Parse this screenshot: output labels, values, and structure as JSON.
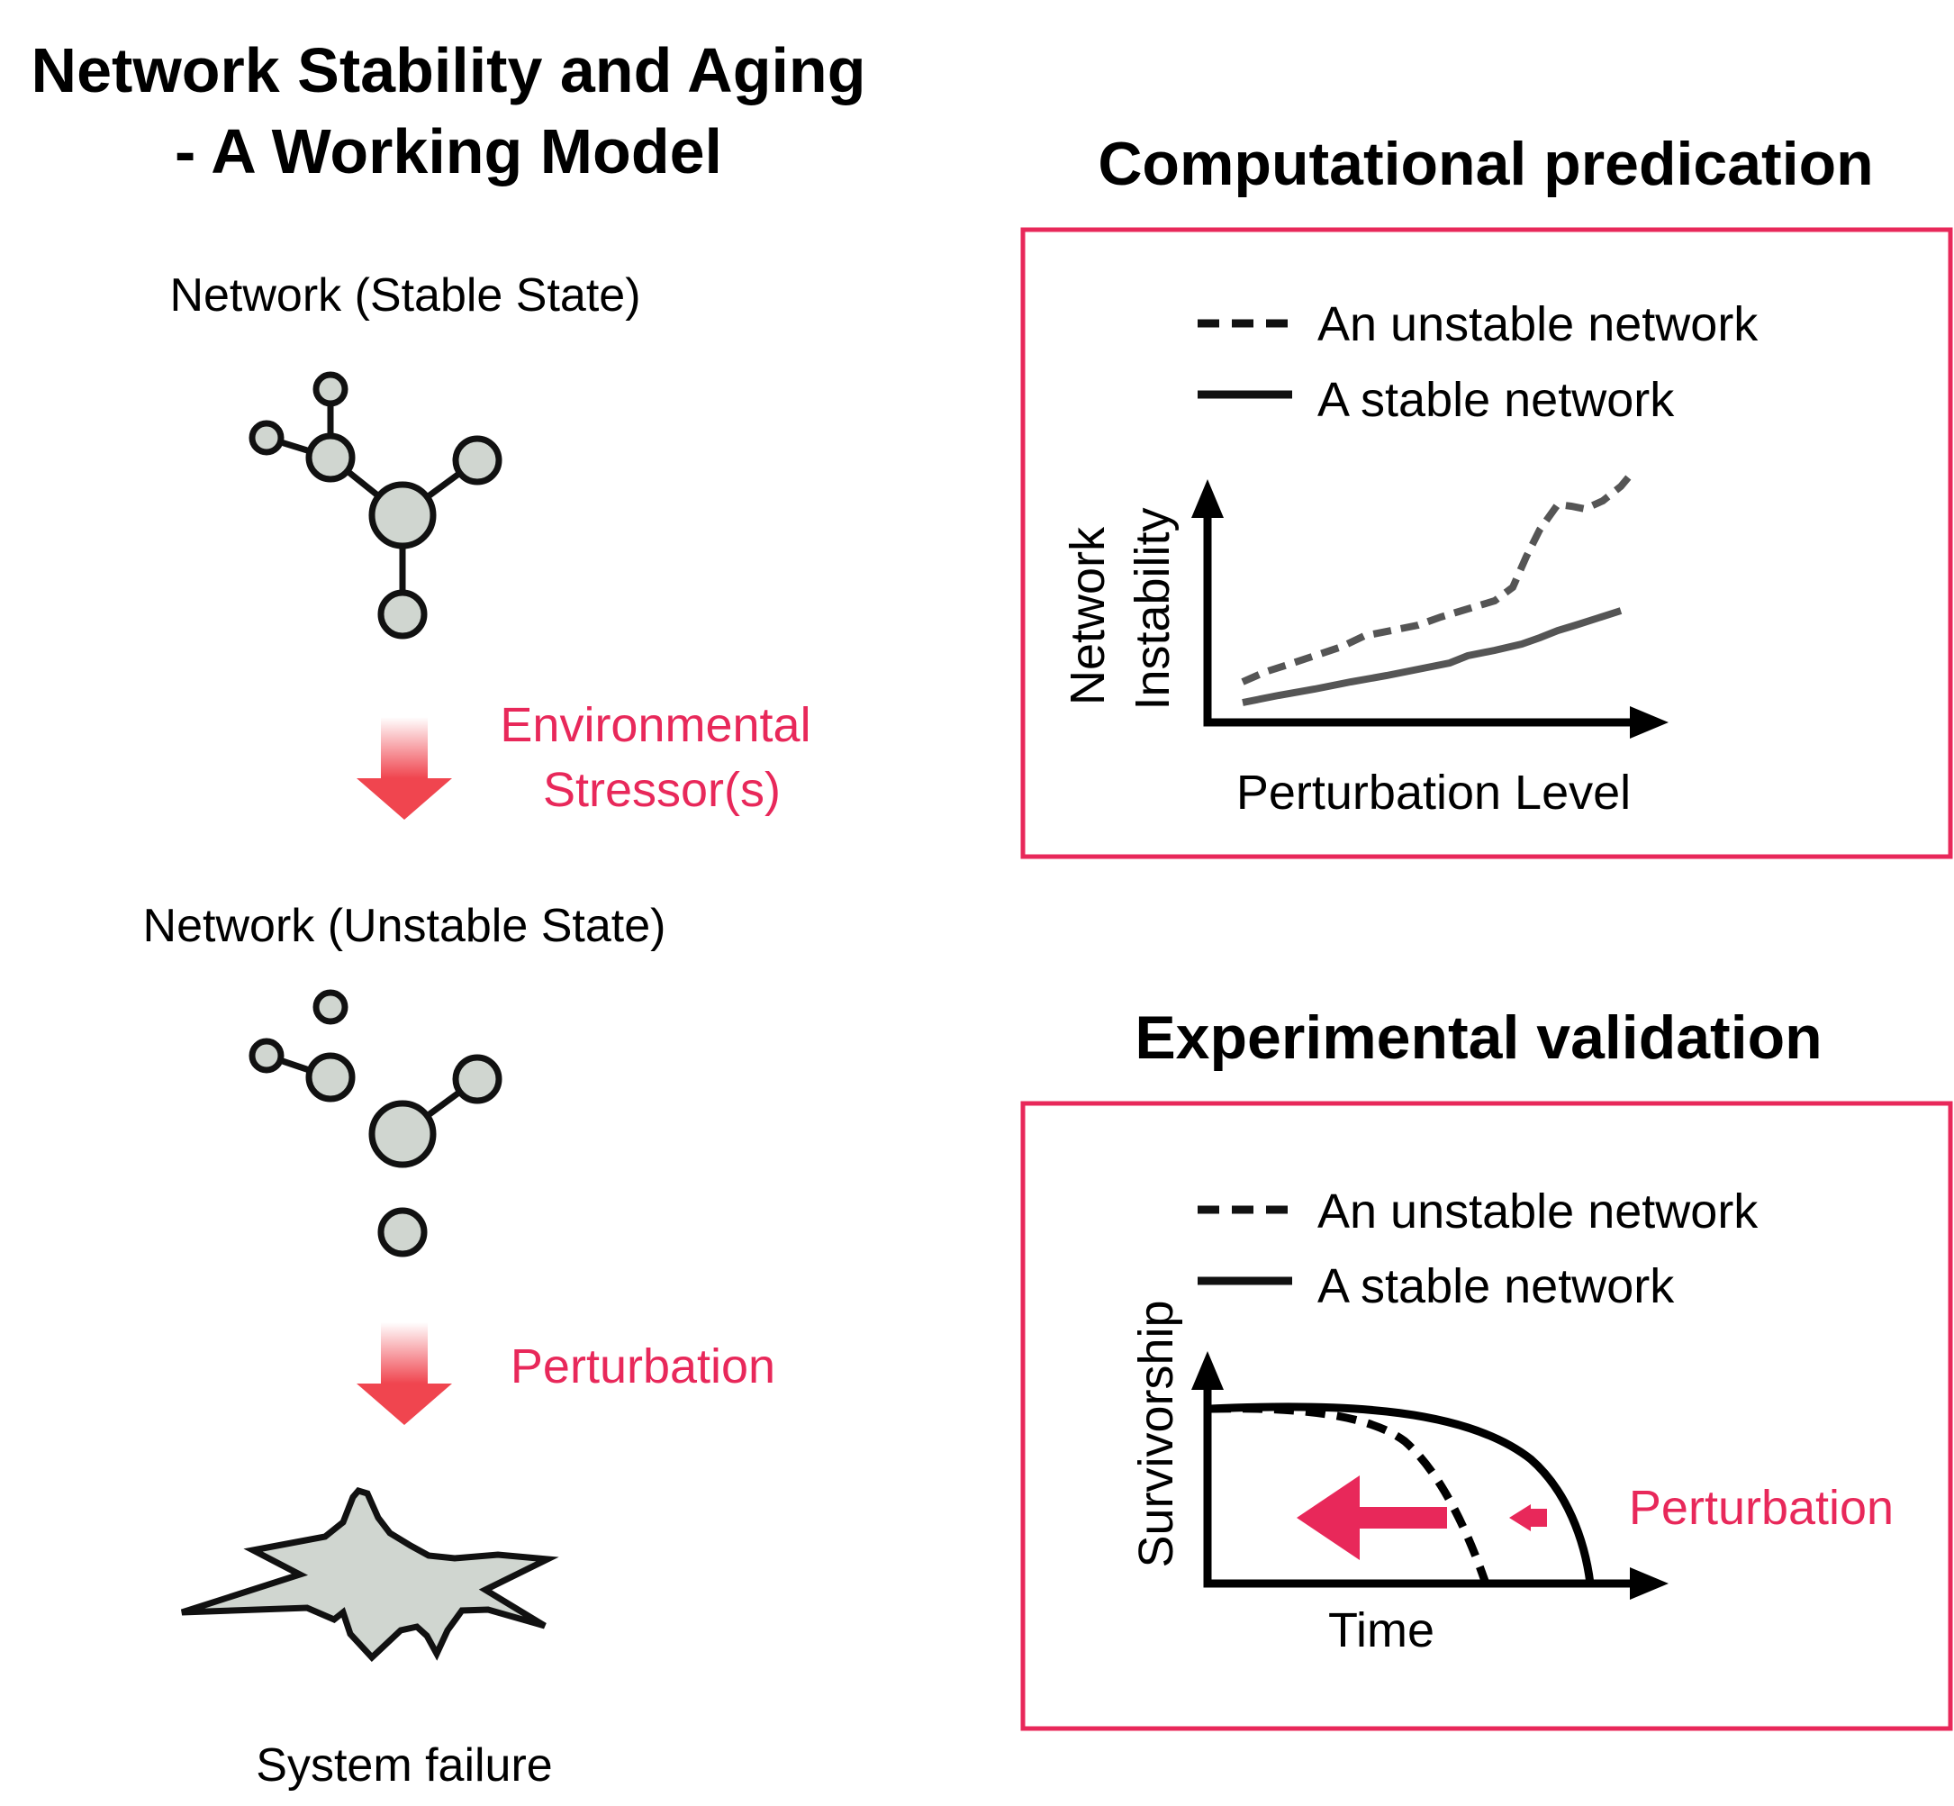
{
  "title": {
    "line1": "Network Stability and Aging",
    "line2": "- A Working Model"
  },
  "left": {
    "stable_label": "Network (Stable State)",
    "stressor_line1": "Environmental",
    "stressor_line2": "Stressor(s)",
    "unstable_label": "Network (Unstable State)",
    "perturbation_label": "Perturbation",
    "failure_label": "System failure"
  },
  "computational": {
    "heading": "Computational predication",
    "legend_unstable": "An unstable network",
    "legend_stable": "A stable network",
    "ylabel_line1": "Network",
    "ylabel_line2": "Instability",
    "xlabel": "Perturbation Level"
  },
  "experimental": {
    "heading": "Experimental validation",
    "legend_unstable": "An unstable network",
    "legend_stable": "A stable network",
    "ylabel": "Survivorship",
    "xlabel": "Time",
    "perturbation_label": "Perturbation"
  },
  "colors": {
    "accent": "#e8285a",
    "node_fill": "#d0d6d0",
    "line_gray": "#555555"
  }
}
